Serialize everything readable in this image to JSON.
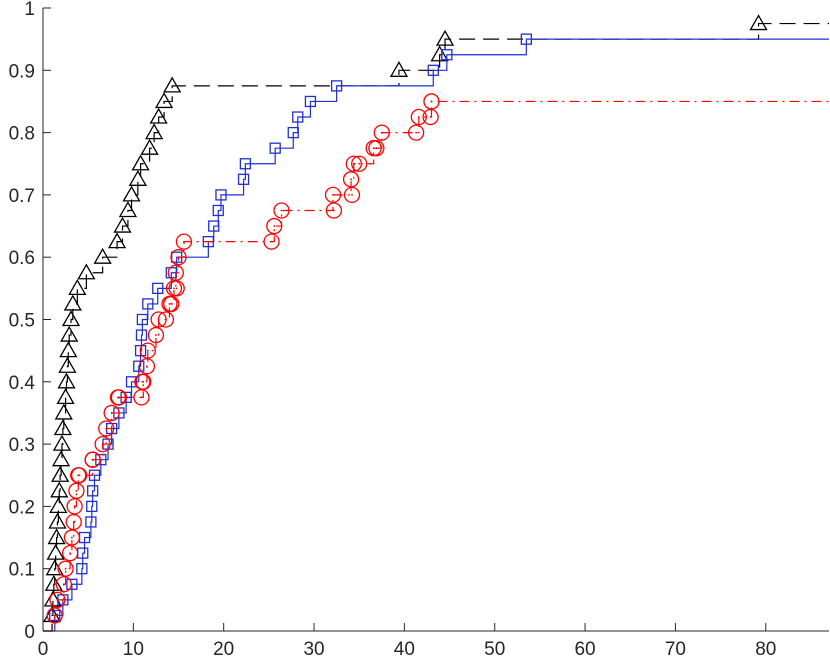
{
  "chart_data": {
    "type": "line",
    "step": true,
    "xlim": [
      0,
      87
    ],
    "ylim": [
      0,
      1
    ],
    "xticks": [
      0,
      10,
      20,
      30,
      40,
      50,
      60,
      70,
      80
    ],
    "xtick_labels": [
      "0",
      "10",
      "20",
      "30",
      "40",
      "50",
      "60",
      "70",
      "80"
    ],
    "yticks": [
      0,
      0.1,
      0.2,
      0.3,
      0.4,
      0.5,
      0.6,
      0.7,
      0.8,
      0.9,
      1
    ],
    "ytick_labels": [
      "0",
      "0.1",
      "0.2",
      "0.3",
      "0.4",
      "0.5",
      "0.6",
      "0.7",
      "0.8",
      "0.9",
      "1"
    ],
    "grid": false,
    "series": [
      {
        "marker": "triangle",
        "line_style": "dashed",
        "color": "#000000",
        "points": [
          [
            1.0,
            0.025
          ],
          [
            1.1,
            0.05
          ],
          [
            1.2,
            0.075
          ],
          [
            1.3,
            0.1
          ],
          [
            1.4,
            0.125
          ],
          [
            1.5,
            0.15
          ],
          [
            1.6,
            0.175
          ],
          [
            1.7,
            0.2
          ],
          [
            1.8,
            0.225
          ],
          [
            1.9,
            0.25
          ],
          [
            2.0,
            0.275
          ],
          [
            2.1,
            0.3
          ],
          [
            2.2,
            0.325
          ],
          [
            2.3,
            0.35
          ],
          [
            2.5,
            0.375
          ],
          [
            2.6,
            0.4
          ],
          [
            2.7,
            0.425
          ],
          [
            2.8,
            0.45
          ],
          [
            2.9,
            0.475
          ],
          [
            3.1,
            0.5
          ],
          [
            3.3,
            0.525
          ],
          [
            3.8,
            0.55
          ],
          [
            4.8,
            0.575
          ],
          [
            6.6,
            0.6
          ],
          [
            8.2,
            0.625
          ],
          [
            8.8,
            0.65
          ],
          [
            9.4,
            0.675
          ],
          [
            9.8,
            0.7
          ],
          [
            10.5,
            0.725
          ],
          [
            10.8,
            0.75
          ],
          [
            11.8,
            0.775
          ],
          [
            12.3,
            0.8
          ],
          [
            12.8,
            0.825
          ],
          [
            13.4,
            0.85
          ],
          [
            14.3,
            0.875
          ],
          [
            39.4,
            0.9
          ],
          [
            43.9,
            0.925
          ],
          [
            44.5,
            0.95
          ],
          [
            79.2,
            0.975
          ]
        ]
      },
      {
        "marker": "square",
        "line_style": "solid",
        "color": "#1f2fd4",
        "points": [
          [
            1.3,
            0.025
          ],
          [
            2.2,
            0.05
          ],
          [
            3.2,
            0.075
          ],
          [
            4.3,
            0.1
          ],
          [
            4.4,
            0.125
          ],
          [
            4.6,
            0.15
          ],
          [
            5.3,
            0.175
          ],
          [
            5.4,
            0.2
          ],
          [
            5.5,
            0.225
          ],
          [
            5.7,
            0.25
          ],
          [
            6.4,
            0.275
          ],
          [
            7.2,
            0.3
          ],
          [
            7.6,
            0.325
          ],
          [
            8.4,
            0.35
          ],
          [
            9.2,
            0.375
          ],
          [
            9.8,
            0.4
          ],
          [
            10.6,
            0.425
          ],
          [
            10.8,
            0.45
          ],
          [
            10.9,
            0.475
          ],
          [
            11.0,
            0.5
          ],
          [
            11.6,
            0.525
          ],
          [
            12.7,
            0.55
          ],
          [
            14.2,
            0.575
          ],
          [
            14.8,
            0.6
          ],
          [
            18.3,
            0.625
          ],
          [
            18.9,
            0.65
          ],
          [
            19.4,
            0.675
          ],
          [
            19.7,
            0.7
          ],
          [
            22.2,
            0.725
          ],
          [
            22.4,
            0.75
          ],
          [
            25.7,
            0.775
          ],
          [
            27.7,
            0.8
          ],
          [
            28.2,
            0.825
          ],
          [
            29.6,
            0.85
          ],
          [
            32.5,
            0.875
          ],
          [
            43.2,
            0.9
          ],
          [
            44.7,
            0.925
          ],
          [
            53.5,
            0.95
          ]
        ]
      },
      {
        "marker": "circle",
        "line_style": "dashdot",
        "color": "#ff0000",
        "points": [
          [
            1.3,
            0.025
          ],
          [
            1.6,
            0.05
          ],
          [
            2.3,
            0.075
          ],
          [
            2.5,
            0.1
          ],
          [
            3.0,
            0.125
          ],
          [
            3.2,
            0.15
          ],
          [
            3.4,
            0.175
          ],
          [
            3.5,
            0.2
          ],
          [
            3.7,
            0.225
          ],
          [
            3.9,
            0.25
          ],
          [
            5.5,
            0.275
          ],
          [
            6.6,
            0.3
          ],
          [
            7.0,
            0.325
          ],
          [
            7.6,
            0.35
          ],
          [
            8.4,
            0.375
          ],
          [
            11.1,
            0.4
          ],
          [
            11.5,
            0.425
          ],
          [
            11.6,
            0.45
          ],
          [
            12.5,
            0.475
          ],
          [
            12.8,
            0.5
          ],
          [
            14.0,
            0.525
          ],
          [
            14.5,
            0.55
          ],
          [
            14.7,
            0.575
          ],
          [
            15.0,
            0.6
          ],
          [
            15.6,
            0.625
          ],
          [
            25.6,
            0.65
          ],
          [
            26.4,
            0.675
          ],
          [
            32.1,
            0.7
          ],
          [
            34.1,
            0.725
          ],
          [
            34.4,
            0.75
          ],
          [
            36.6,
            0.775
          ],
          [
            37.5,
            0.8
          ],
          [
            41.6,
            0.825
          ],
          [
            43.0,
            0.85
          ]
        ],
        "extra_markers": [
          [
            4.0,
            0.25
          ],
          [
            5.5,
            0.275
          ],
          [
            8.3,
            0.375
          ],
          [
            10.9,
            0.375
          ],
          [
            11.0,
            0.4
          ],
          [
            13.6,
            0.5
          ],
          [
            14.2,
            0.525
          ],
          [
            14.8,
            0.55
          ],
          [
            25.3,
            0.625
          ],
          [
            32.2,
            0.675
          ],
          [
            34.2,
            0.7
          ],
          [
            35.0,
            0.75
          ],
          [
            36.9,
            0.775
          ],
          [
            41.3,
            0.8
          ],
          [
            42.9,
            0.825
          ]
        ]
      }
    ]
  }
}
